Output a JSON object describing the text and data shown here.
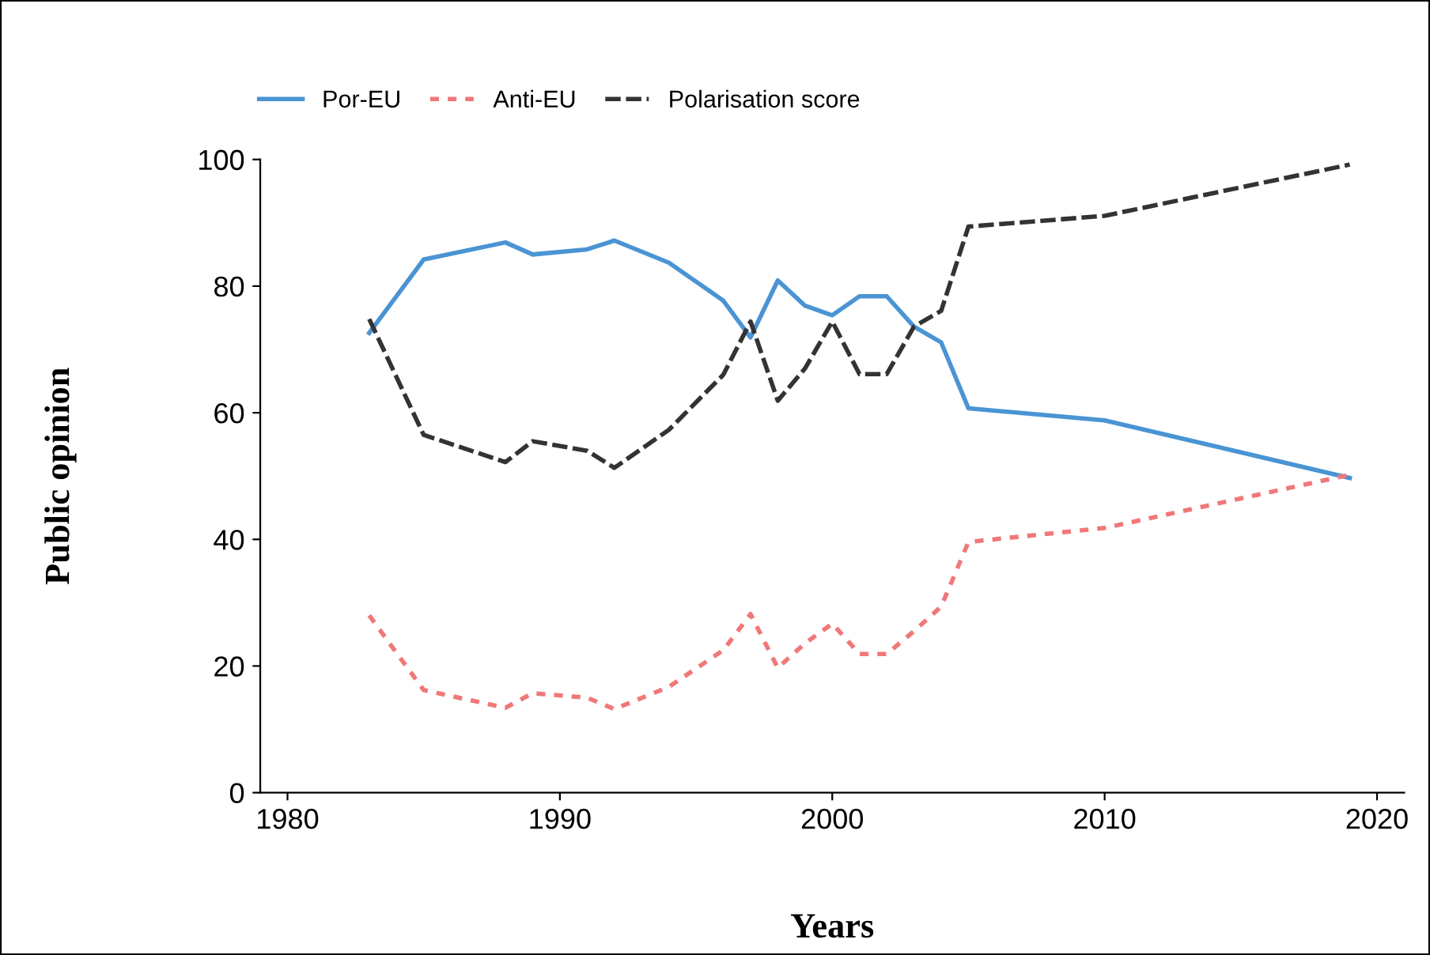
{
  "chart_data": {
    "type": "line",
    "xlabel": "Years",
    "ylabel": "Public opinion",
    "x": [
      1983,
      1985,
      1988,
      1989,
      1991,
      1992,
      1994,
      1996,
      1997,
      1998,
      1999,
      2000,
      2001,
      2002,
      2003,
      2004,
      2005,
      2010,
      2019
    ],
    "series": [
      {
        "name": "Por-EU",
        "color": "#4a94d4",
        "line_style": "solid",
        "values": [
          72.6,
          84.2,
          86.9,
          85,
          85.8,
          87.2,
          83.7,
          77.7,
          71.9,
          80.9,
          76.9,
          75.4,
          78.4,
          78.4,
          73.6,
          71.1,
          60.7,
          58.8,
          49.7
        ]
      },
      {
        "name": "Anti-EU",
        "color": "#f07878",
        "line_style": "dotted",
        "values": [
          28,
          16.2,
          13.4,
          15.7,
          15,
          13.2,
          16.7,
          22.5,
          28.2,
          19.7,
          23.6,
          26.7,
          21.9,
          21.9,
          25.5,
          29.4,
          39.6,
          41.8,
          50.2
        ]
      },
      {
        "name": "Polarisation score",
        "color": "#333333",
        "line_style": "dashed",
        "values": [
          74.8,
          56.5,
          52.2,
          55.5,
          54,
          51.3,
          57.3,
          66,
          74.4,
          61.9,
          67,
          74.4,
          66.1,
          66.1,
          73.6,
          76.1,
          89.4,
          91.1,
          99.2
        ]
      }
    ],
    "xlim": [
      1979,
      2021
    ],
    "xticks": [
      1980,
      1990,
      2000,
      2010,
      2020
    ],
    "ylim": [
      0,
      100
    ],
    "yticks": [
      0,
      20,
      40,
      60,
      80,
      100
    ],
    "grid": false,
    "legend": "top left",
    "marker": "none"
  }
}
